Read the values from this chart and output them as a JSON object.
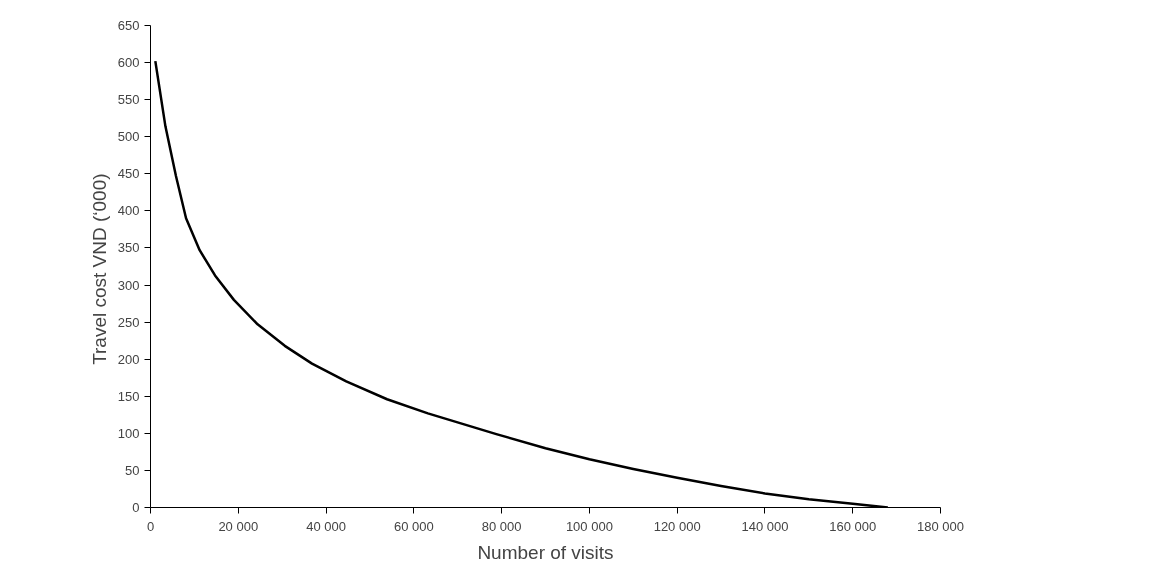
{
  "chart_data": {
    "type": "line",
    "xlabel": "Number of visits",
    "ylabel": "Travel cost VND  (‘000)",
    "x": [
      1100,
      3400,
      5800,
      8100,
      11200,
      14700,
      19000,
      24400,
      30600,
      36800,
      44600,
      53900,
      63200,
      78800,
      90000,
      100000,
      110000,
      120000,
      130000,
      140000,
      150000,
      160000,
      168000
    ],
    "series": [
      {
        "color": "#000000",
        "values": [
          602,
          514,
          447,
          390,
          347,
          313,
          280,
          247,
          218,
          194,
          170,
          146,
          127,
          99,
          80,
          65,
          52,
          40,
          29,
          19,
          11,
          5,
          0
        ]
      }
    ],
    "xlim": [
      0,
      180000
    ],
    "xticks": [
      0,
      {
        "value": 20000,
        "label": "20 000"
      },
      {
        "value": 40000,
        "label": "40 000"
      },
      {
        "value": 60000,
        "label": "60 000"
      },
      {
        "value": 80000,
        "label": "80 000"
      },
      {
        "value": 100000,
        "label": "100 000"
      },
      {
        "value": 120000,
        "label": "120 000"
      },
      {
        "value": 140000,
        "label": "140 000"
      },
      {
        "value": 160000,
        "label": "160 000"
      },
      {
        "value": 180000,
        "label": "180 000"
      }
    ],
    "ylim": [
      0,
      650
    ],
    "yticks": [
      0,
      50,
      100,
      150,
      200,
      250,
      300,
      350,
      400,
      450,
      500,
      550,
      600,
      650
    ],
    "grid": false,
    "marker": "none",
    "line_style": "solid"
  }
}
